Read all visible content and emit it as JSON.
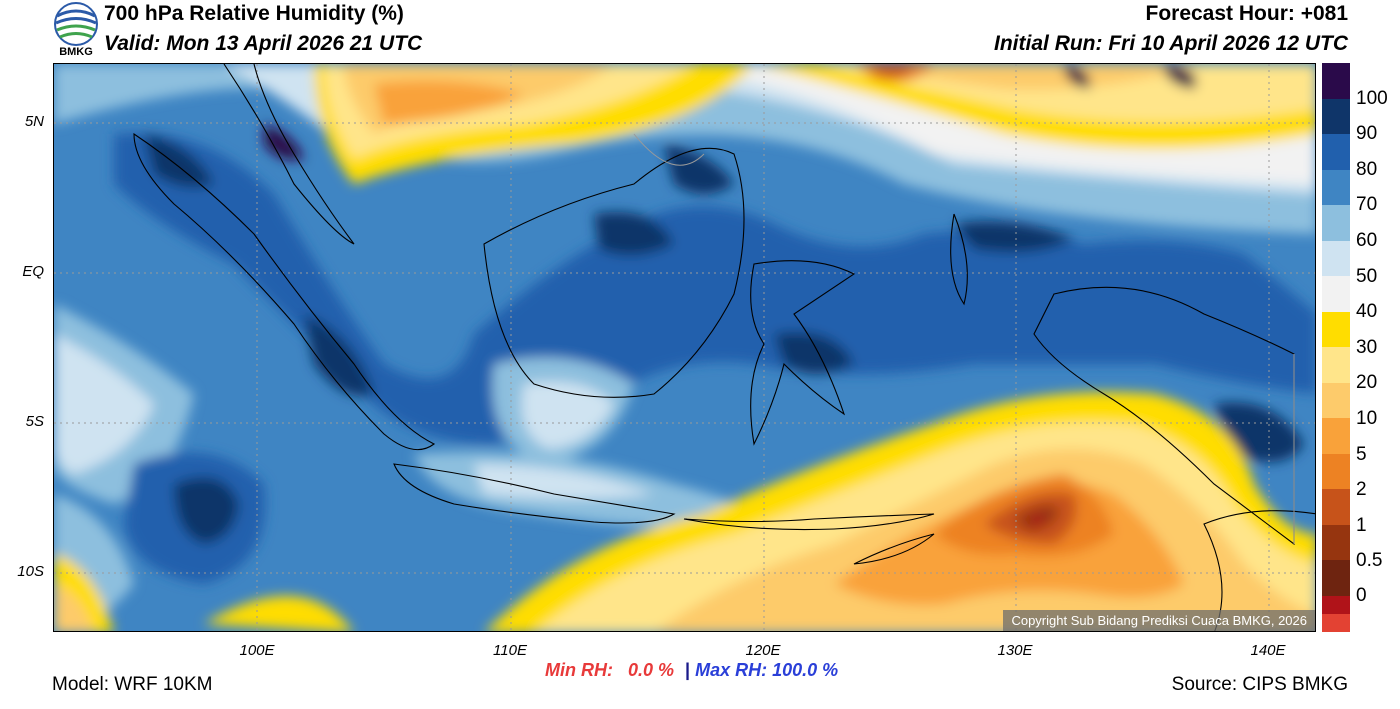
{
  "header": {
    "title": "700 hPa Relative Humidity (%)",
    "valid": "Valid: Mon 13 April 2026 21 UTC",
    "forecast_hour": "Forecast Hour: +081",
    "initial_run": "Initial Run: Fri 10 April 2026 12 UTC"
  },
  "logo": {
    "text": "BMKG"
  },
  "map": {
    "lat_labels": [
      "5N",
      "EQ",
      "5S",
      "10S"
    ],
    "lon_labels": [
      "100E",
      "110E",
      "120E",
      "130E",
      "140E"
    ],
    "copyright": "Copyright Sub Bidang Prediksi Cuaca BMKG, 2026"
  },
  "colorbar": {
    "labels": [
      "100",
      "90",
      "80",
      "70",
      "60",
      "50",
      "40",
      "30",
      "20",
      "10",
      "5",
      "2",
      "1",
      "0.5",
      "0"
    ],
    "colors": {
      "c100": "#2a0a4a",
      "c90": "#0f3569",
      "c80": "#2160ad",
      "c70": "#3f85c3",
      "c60": "#8dbfde",
      "c50": "#cfe3f1",
      "c40w": "#f2f2f2",
      "c40": "#ffdd00",
      "c30": "#ffe58a",
      "c20": "#fdcb6b",
      "c10": "#f9a23a",
      "c5": "#ed8223",
      "c2": "#c7531a",
      "c1": "#96350f",
      "c05": "#6e2410",
      "c0": "#b01319",
      "cmin": "#e34233"
    }
  },
  "stats": {
    "min_label": "Min RH:",
    "min_value": "0.0 %",
    "separator": "|",
    "max_label": "Max RH:",
    "max_value": "100.0 %",
    "min_color": "#e83a3a",
    "max_color": "#2a3fd8"
  },
  "footer": {
    "model": "Model: WRF 10KM",
    "source": "Source: CIPS BMKG"
  }
}
